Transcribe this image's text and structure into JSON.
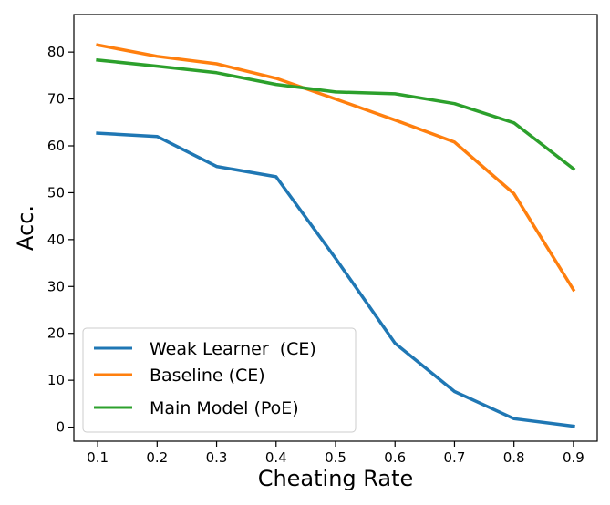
{
  "chart_data": {
    "type": "line",
    "title": "",
    "xlabel": "Cheating Rate",
    "ylabel": "Acc.",
    "x": [
      0.1,
      0.2,
      0.3,
      0.4,
      0.5,
      0.6,
      0.7,
      0.8,
      0.9
    ],
    "x_tick_labels": [
      "0.1",
      "0.2",
      "0.3",
      "0.4",
      "0.5",
      "0.6",
      "0.7",
      "0.8",
      "0.9"
    ],
    "y_ticks": [
      0,
      10,
      20,
      30,
      40,
      50,
      60,
      70,
      80
    ],
    "xlim": [
      0.06,
      0.94
    ],
    "ylim": [
      -3,
      88
    ],
    "grid": false,
    "legend_position": "lower-left",
    "series": [
      {
        "name": "Weak Learner  (CE)",
        "color": "#1f77b4",
        "values": [
          62.7,
          62.0,
          55.6,
          53.4,
          36.0,
          17.9,
          7.6,
          1.8,
          0.2
        ]
      },
      {
        "name": "Baseline (CE)",
        "color": "#ff7f0e",
        "values": [
          81.5,
          79.1,
          77.5,
          74.4,
          70.0,
          65.5,
          60.8,
          49.8,
          29.3
        ]
      },
      {
        "name": "Main Model (PoE)",
        "color": "#2ca02c",
        "values": [
          78.3,
          77.0,
          75.6,
          73.1,
          71.5,
          71.1,
          69.0,
          64.9,
          55.1
        ]
      }
    ]
  }
}
